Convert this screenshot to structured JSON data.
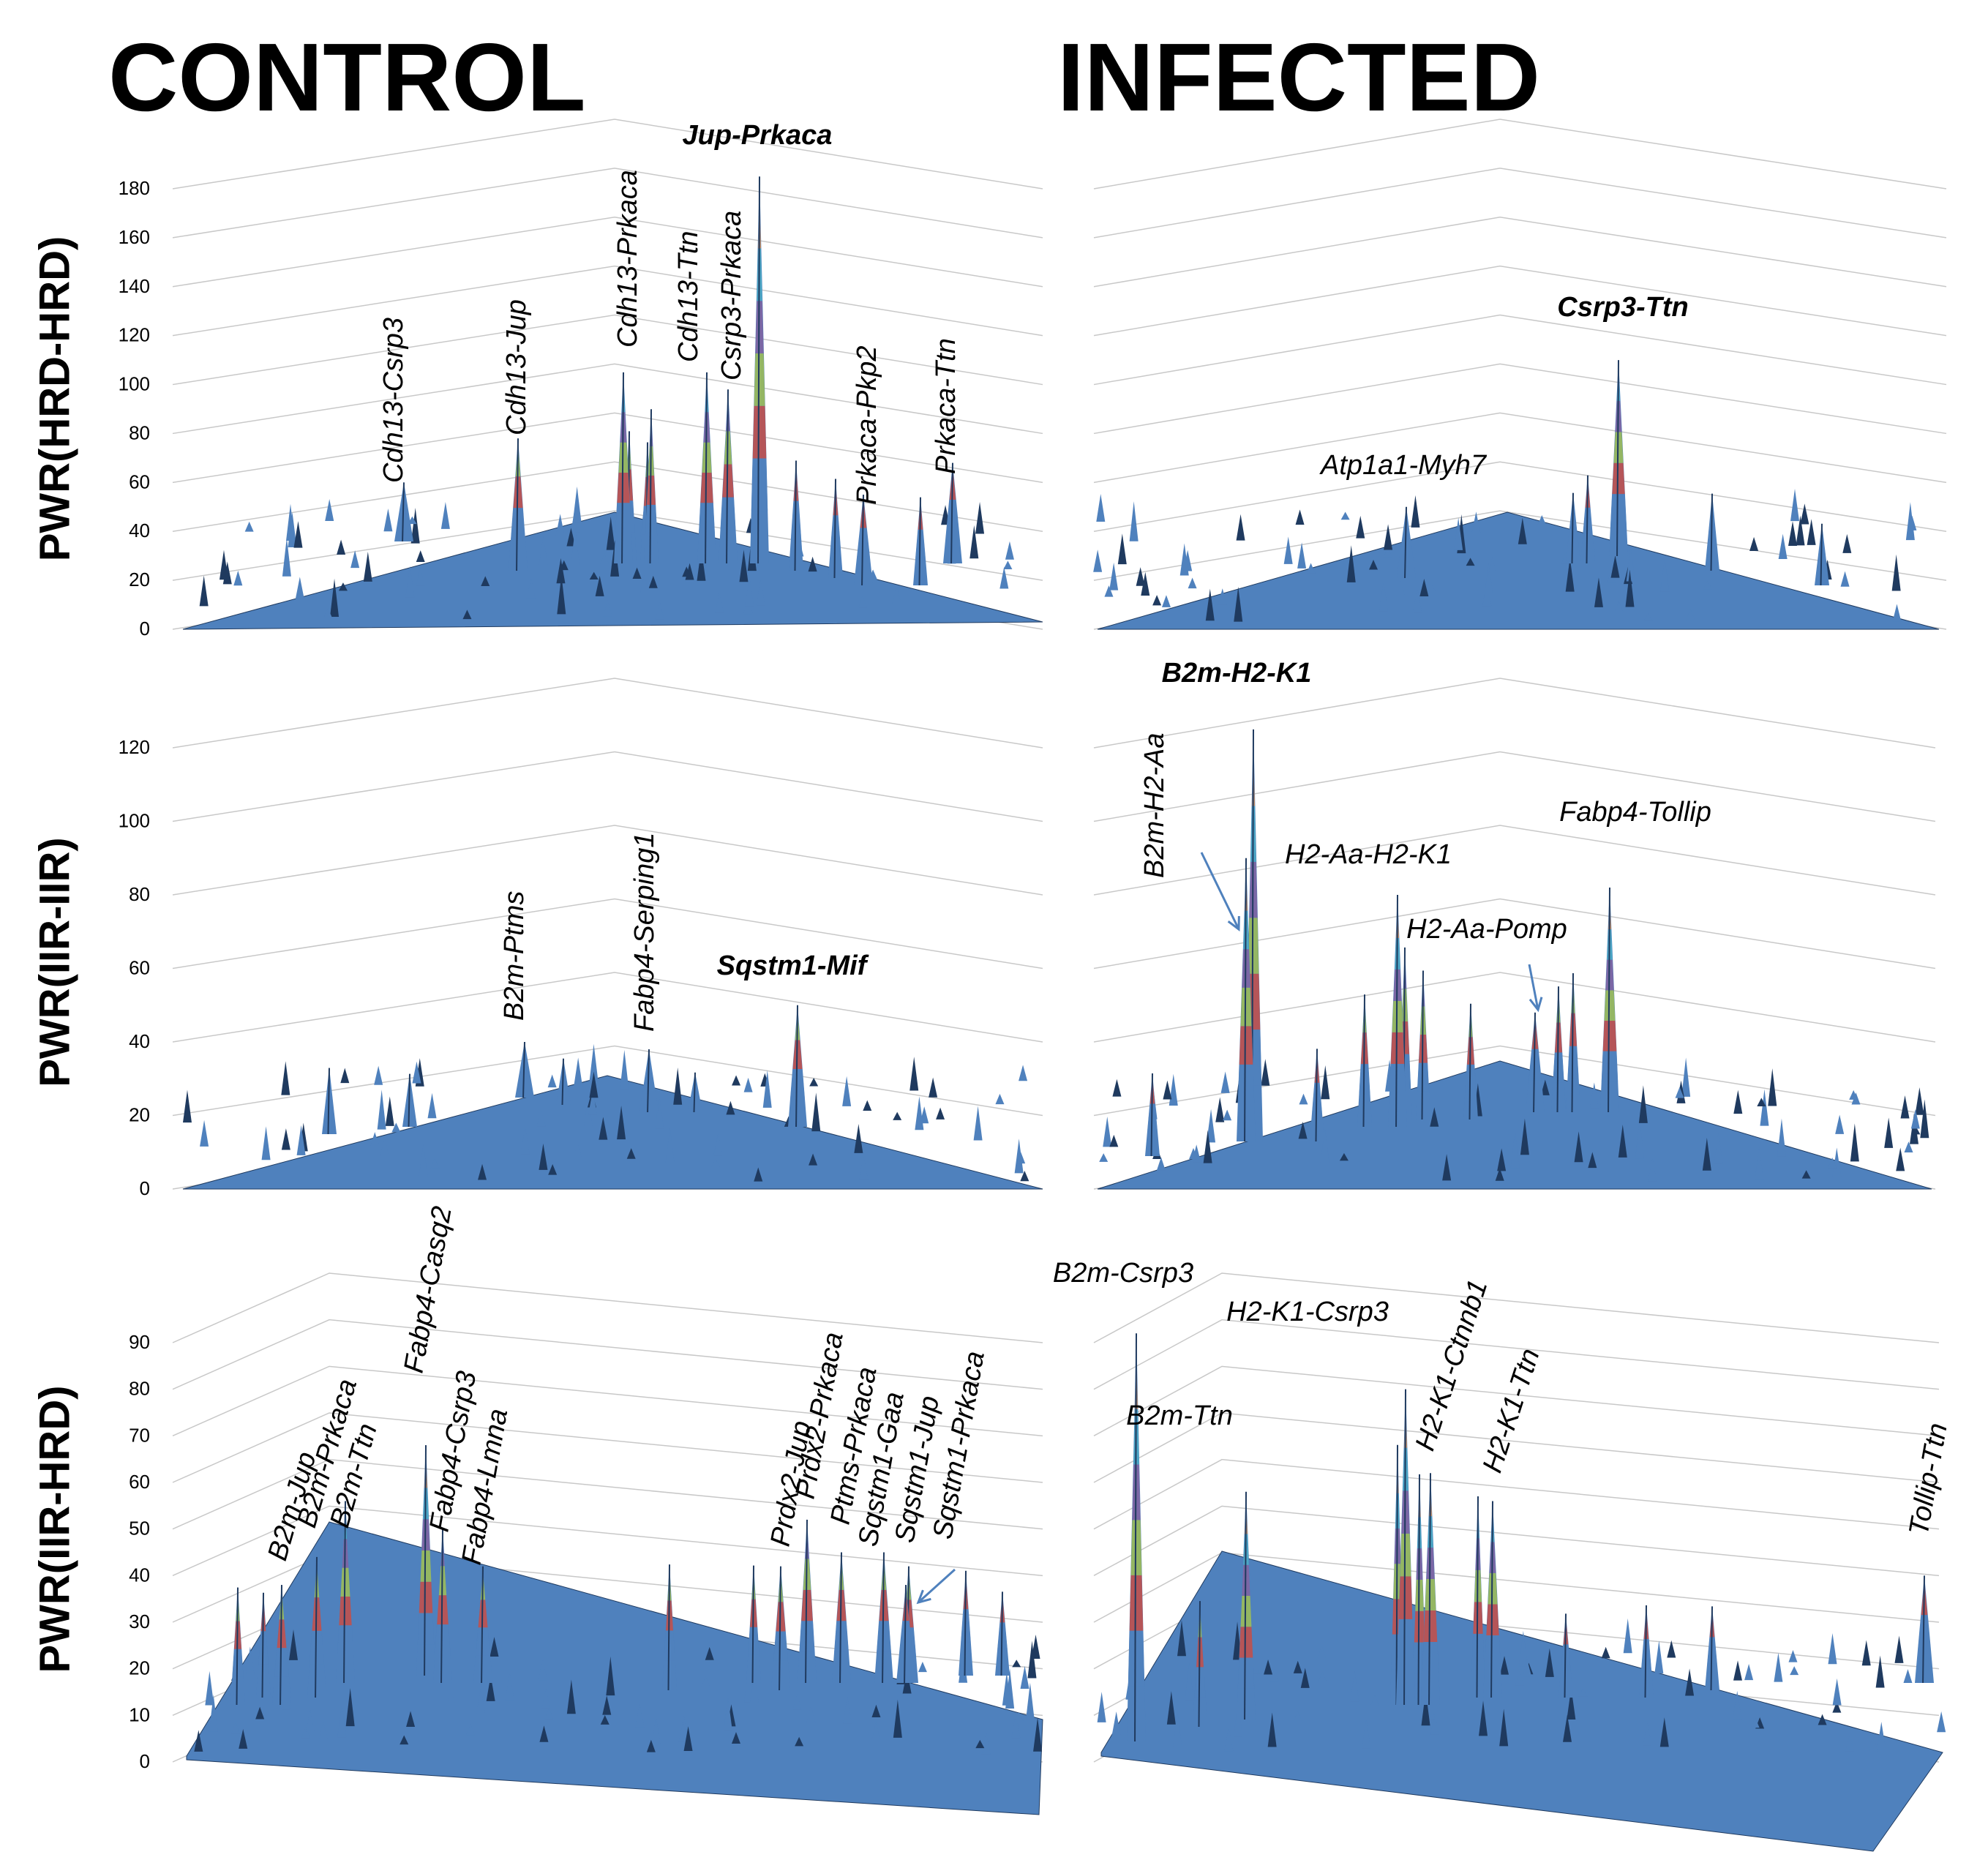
{
  "titles": {
    "left": "CONTROL",
    "right": "INFECTED"
  },
  "row_labels": [
    "PWR(HRD-HRD)",
    "PWR(IIR-IIR)",
    "PWR(IIR-HRD)"
  ],
  "colors": {
    "surface": "#4f81bd",
    "dark": "#1f3a5f",
    "red": "#c0504d",
    "green": "#9bbb59",
    "purple": "#8064a2",
    "teal": "#4bacc6",
    "orange": "#f79646",
    "arrow": "#4f81bd"
  },
  "chart_data": [
    {
      "type": "surface3d",
      "panel": "control-hrd-hrd",
      "ylim": [
        0,
        180
      ],
      "yticks": [
        0,
        20,
        40,
        60,
        80,
        100,
        120,
        140,
        160,
        180
      ],
      "peaks": [
        {
          "label": "Cdh13-Csrp3",
          "value": 60
        },
        {
          "label": "Cdh13-Jup",
          "value": 78
        },
        {
          "label": "Cdh13-Prkaca",
          "value": 105
        },
        {
          "label": "Cdh13-Ttn",
          "value": 105
        },
        {
          "label": "Csrp3-Prkaca",
          "value": 98
        },
        {
          "label": "Jup-Prkaca",
          "value": 185,
          "bold": true
        },
        {
          "label": "Prkaca-Pkp2",
          "value": 55
        },
        {
          "label": "Prkaca-Ttn",
          "value": 68
        }
      ]
    },
    {
      "type": "surface3d",
      "panel": "infected-hrd-hrd",
      "ylim": [
        0,
        180
      ],
      "peaks": [
        {
          "label": "Atp1a1-Myh7",
          "value": 50
        },
        {
          "label": "Csrp3-Ttn",
          "value": 110,
          "bold": true
        }
      ]
    },
    {
      "type": "surface3d",
      "panel": "control-iir-iir",
      "ylim": [
        0,
        120
      ],
      "yticks": [
        0,
        20,
        40,
        60,
        80,
        100,
        120
      ],
      "peaks": [
        {
          "label": "B2m-Ptms",
          "value": 40
        },
        {
          "label": "Fabp4-Serping1",
          "value": 38
        },
        {
          "label": "Sqstm1-Mif",
          "value": 50,
          "bold": true
        }
      ]
    },
    {
      "type": "surface3d",
      "panel": "infected-iir-iir",
      "ylim": [
        0,
        120
      ],
      "peaks": [
        {
          "label": "B2m-H2-K1",
          "value": 125,
          "bold": true
        },
        {
          "label": "B2m-H2-Aa",
          "value": 90
        },
        {
          "label": "H2-Aa-H2-K1",
          "value": 80
        },
        {
          "label": "H2-Aa-Pomp",
          "value": 48
        },
        {
          "label": "Fabp4-Tollip",
          "value": 82
        }
      ]
    },
    {
      "type": "surface3d",
      "panel": "control-iir-hrd",
      "ylim": [
        0,
        90
      ],
      "yticks": [
        0,
        10,
        20,
        30,
        40,
        50,
        60,
        70,
        80,
        90
      ],
      "peaks": [
        {
          "label": "B2m-Jup",
          "value": 38
        },
        {
          "label": "B2m-Prkaca",
          "value": 44
        },
        {
          "label": "B2m-Ttn",
          "value": 56
        },
        {
          "label": "Fabp4-Casq2",
          "value": 68
        },
        {
          "label": "Fabp4-Csrp3",
          "value": 50
        },
        {
          "label": "Fabp4-Lmna",
          "value": 42
        },
        {
          "label": "Prdx2-Jup",
          "value": 42
        },
        {
          "label": "Prdx2-Prkaca",
          "value": 52
        },
        {
          "label": "Ptms-Prkaca",
          "value": 45
        },
        {
          "label": "Sqstm1-Gaa",
          "value": 45
        },
        {
          "label": "Sqstm1-Jup",
          "value": 42
        },
        {
          "label": "Sqstm1-Prkaca",
          "value": 38
        }
      ]
    },
    {
      "type": "surface3d",
      "panel": "infected-iir-hrd",
      "ylim": [
        0,
        90
      ],
      "peaks": [
        {
          "label": "B2m-Csrp3",
          "value": 92
        },
        {
          "label": "B2m-Ttn",
          "value": 58
        },
        {
          "label": "H2-K1-Csrp3",
          "value": 80
        },
        {
          "label": "H2-K1-Ctnnb1",
          "value": 62
        },
        {
          "label": "H2-K1-Ttn",
          "value": 56
        },
        {
          "label": "Tollip-Ttn",
          "value": 40
        }
      ]
    }
  ]
}
